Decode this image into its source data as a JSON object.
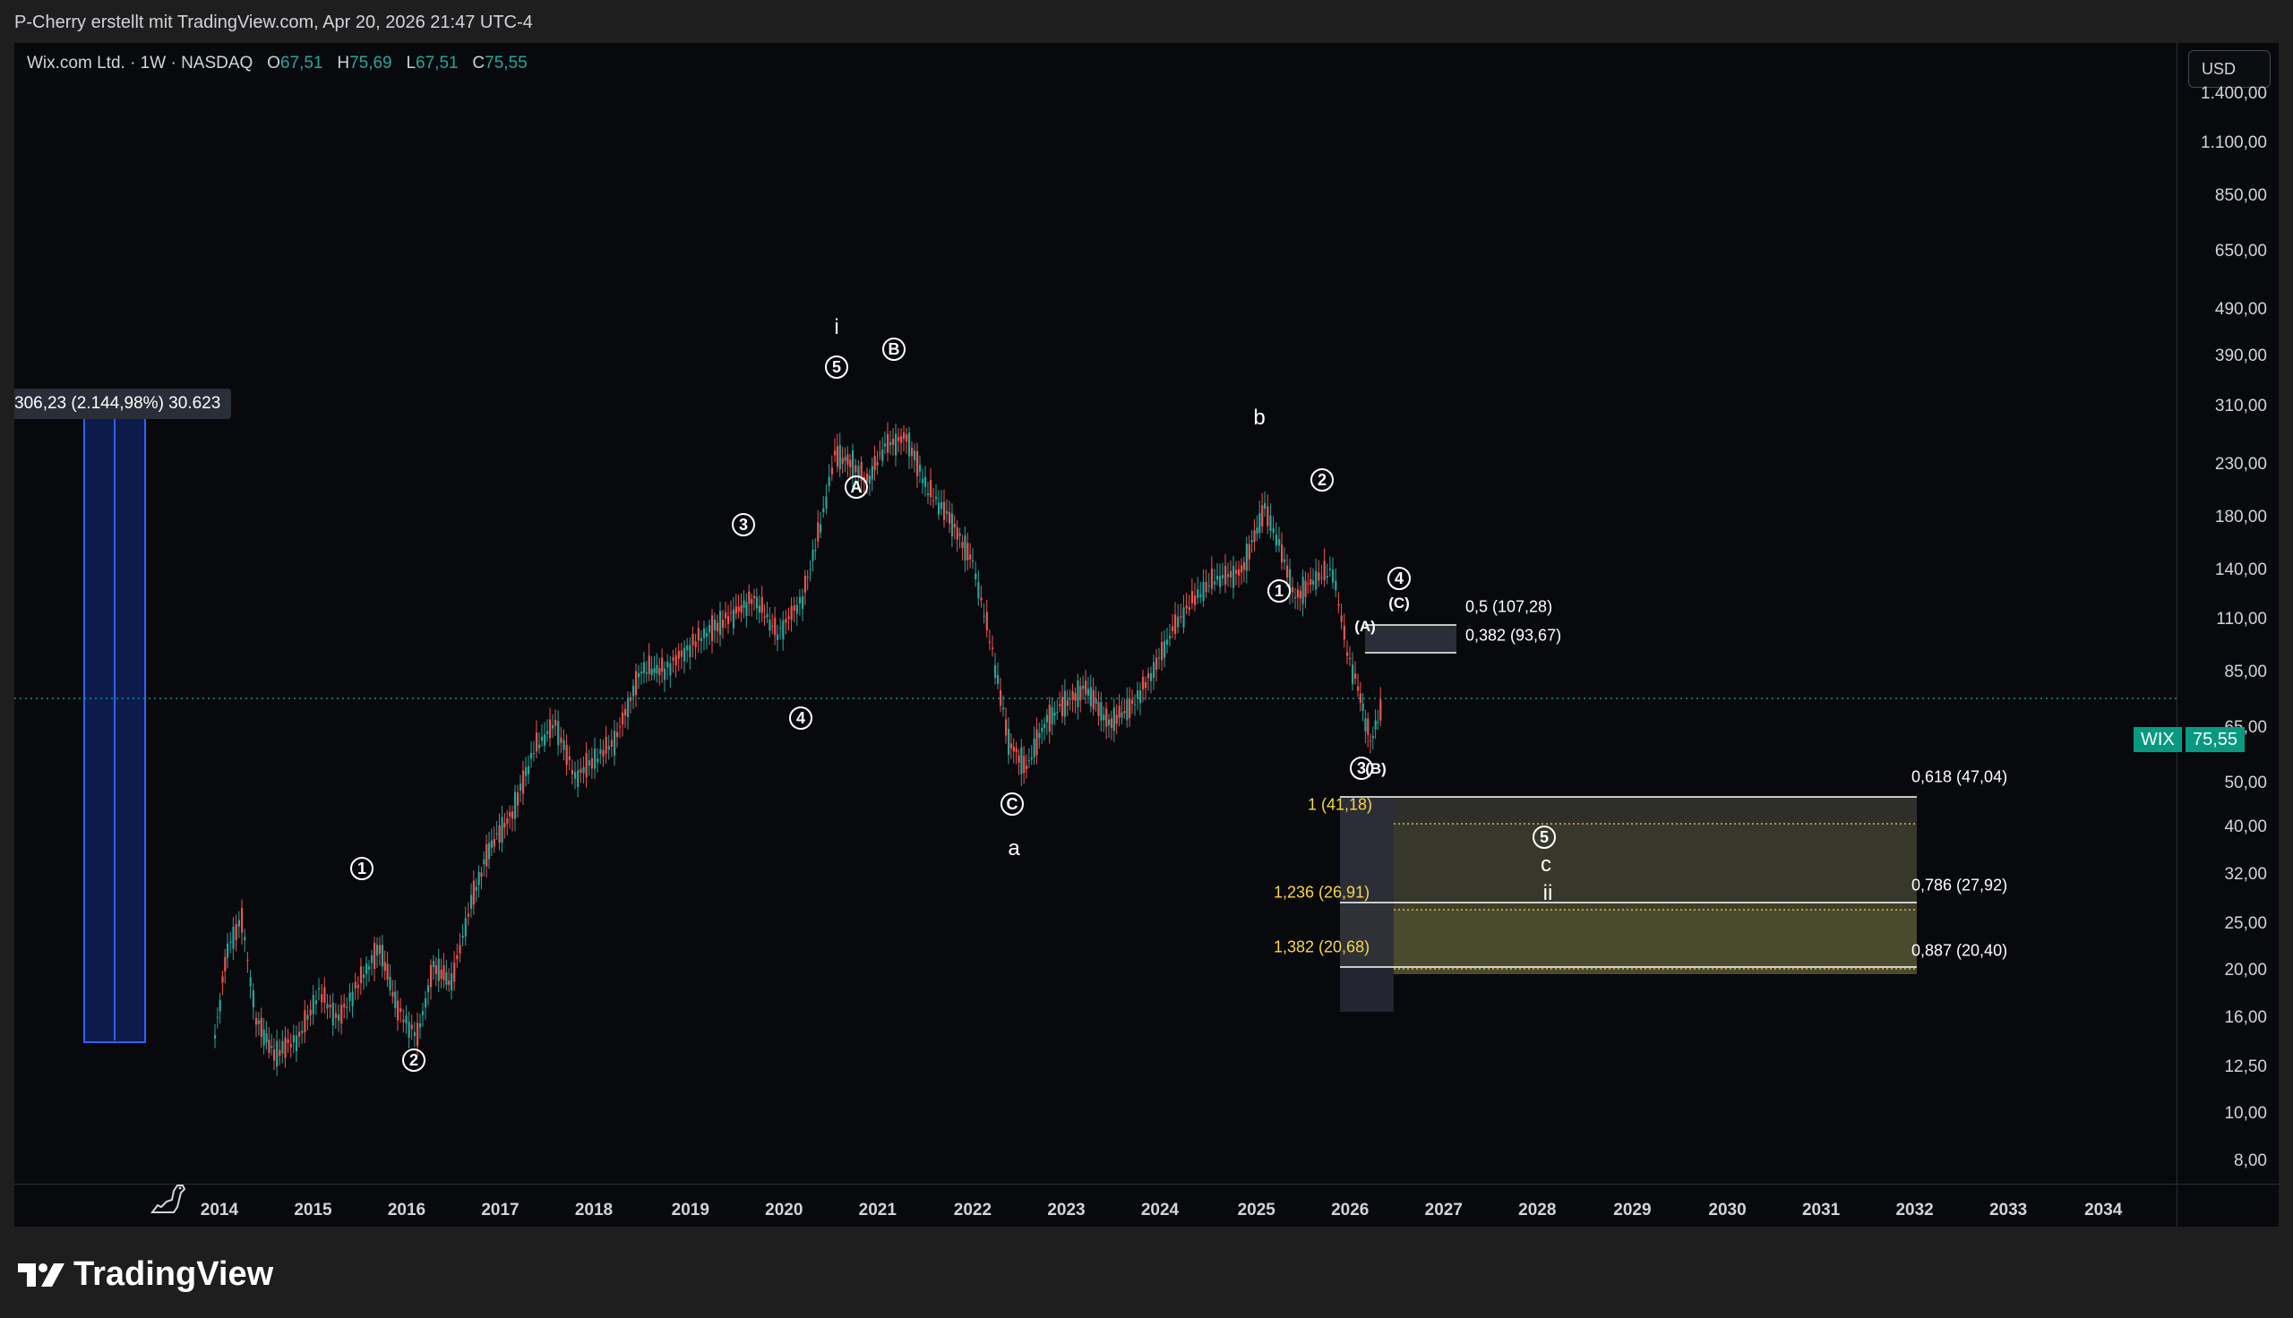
{
  "header": {
    "credit": "P-Cherry erstellt mit TradingView.com, Apr 20, 2026 21:47 UTC-4"
  },
  "legend": {
    "symbol": "Wix.com Ltd. · 1W · NASDAQ",
    "o_label": "O",
    "o_value": "67,51",
    "h_label": "H",
    "h_value": "75,69",
    "l_label": "L",
    "l_value": "67,51",
    "c_label": "C",
    "c_value": "75,55"
  },
  "currency": "USD",
  "price_axis": [
    "1.400,00",
    "1.100,00",
    "850,00",
    "650,00",
    "490,00",
    "390,00",
    "310,00",
    "230,00",
    "180,00",
    "140,00",
    "110,00",
    "85,00",
    "65,00",
    "50,00",
    "40,00",
    "32,00",
    "25,00",
    "20,00",
    "16,00",
    "12,50",
    "10,00",
    "8,00"
  ],
  "time_axis": [
    "2014",
    "2015",
    "2016",
    "2017",
    "2018",
    "2019",
    "2020",
    "2021",
    "2022",
    "2023",
    "2024",
    "2025",
    "2026",
    "2027",
    "2028",
    "2029",
    "2030",
    "2031",
    "2032",
    "2033",
    "2034"
  ],
  "last_price": {
    "ticker": "WIX",
    "value": "75,55"
  },
  "measure": {
    "text": "306,23 (2.144,98%) 30.623"
  },
  "fib_levels": {
    "r05": "0,5 (107,28)",
    "r0382": "0,382 (93,67)",
    "r0618": "0,618 (47,04)",
    "r0786": "0,786 (27,92)",
    "r0887": "0,887 (20,40)",
    "e1": "1 (41,18)",
    "e1236": "1,236 (26,91)",
    "e1382": "1,382 (20,68)"
  },
  "waves": {
    "big_i": "i",
    "big_a": "a",
    "big_b": "b",
    "big_c": "c",
    "big_ii": "ii",
    "w1": "1",
    "w2": "2",
    "w3": "3",
    "w4": "4",
    "w5": "5",
    "wA": "A",
    "wB": "B",
    "wC": "C",
    "w1b": "1",
    "w2b": "2",
    "w3b": "3",
    "w4b": "4",
    "w5b": "5",
    "pA": "(A)",
    "pB": "(B)",
    "pC": "(C)"
  },
  "brand": "TradingView",
  "colors": {
    "up": "#26a69a",
    "down": "#ef5350",
    "background": "#08090d",
    "accent": "#089981"
  }
}
